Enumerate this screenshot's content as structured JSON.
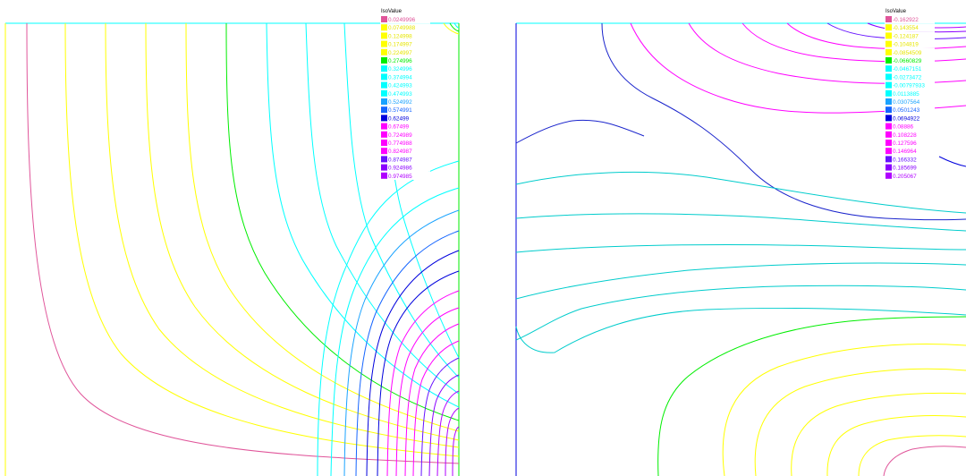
{
  "plots": [
    {
      "legend_title": "IsoValue",
      "levels": [
        {
          "value": "0.0249996",
          "color": "#e0559a"
        },
        {
          "value": "0.0749988",
          "color": "#ffff00"
        },
        {
          "value": "0.124998",
          "color": "#ffff00"
        },
        {
          "value": "0.174997",
          "color": "#ffff00"
        },
        {
          "value": "0.224997",
          "color": "#ffff00"
        },
        {
          "value": "0.274996",
          "color": "#00ee00"
        },
        {
          "value": "0.324996",
          "color": "#00ffff"
        },
        {
          "value": "0.374994",
          "color": "#00ffff"
        },
        {
          "value": "0.424993",
          "color": "#00ffff"
        },
        {
          "value": "0.474993",
          "color": "#00ffff"
        },
        {
          "value": "0.524992",
          "color": "#1aa3ff"
        },
        {
          "value": "0.574991",
          "color": "#1565ff"
        },
        {
          "value": "0.62499",
          "color": "#0000dd"
        },
        {
          "value": "0.67499",
          "color": "#ff00ff"
        },
        {
          "value": "0.724989",
          "color": "#ff00ff"
        },
        {
          "value": "0.774988",
          "color": "#ff00ff"
        },
        {
          "value": "0.824987",
          "color": "#ff00ff"
        },
        {
          "value": "0.874987",
          "color": "#6611ff"
        },
        {
          "value": "0.924986",
          "color": "#8a00ff"
        },
        {
          "value": "0.974985",
          "color": "#b000ff"
        }
      ]
    },
    {
      "legend_title": "IsoValue",
      "levels": [
        {
          "value": "-0.162922",
          "color": "#e0559a"
        },
        {
          "value": "-0.143554",
          "color": "#ffff00"
        },
        {
          "value": "-0.124187",
          "color": "#ffff00"
        },
        {
          "value": "-0.104819",
          "color": "#ffff00"
        },
        {
          "value": "-0.0854509",
          "color": "#ffff00"
        },
        {
          "value": "-0.0660829",
          "color": "#00ee00"
        },
        {
          "value": "-0.0467151",
          "color": "#00ffff"
        },
        {
          "value": "-0.0273472",
          "color": "#00ffff"
        },
        {
          "value": "-0.00797933",
          "color": "#00ffff"
        },
        {
          "value": "0.0113885",
          "color": "#00ffff"
        },
        {
          "value": "0.0307564",
          "color": "#1aa3ff"
        },
        {
          "value": "0.0501243",
          "color": "#1565ff"
        },
        {
          "value": "0.0694922",
          "color": "#0000dd"
        },
        {
          "value": "0.08886",
          "color": "#ff00ff"
        },
        {
          "value": "0.108228",
          "color": "#ff00ff"
        },
        {
          "value": "0.127596",
          "color": "#ff00ff"
        },
        {
          "value": "0.146964",
          "color": "#ff00ff"
        },
        {
          "value": "0.166332",
          "color": "#6611ff"
        },
        {
          "value": "0.185699",
          "color": "#8a00ff"
        },
        {
          "value": "0.205067",
          "color": "#b000ff"
        }
      ]
    }
  ]
}
